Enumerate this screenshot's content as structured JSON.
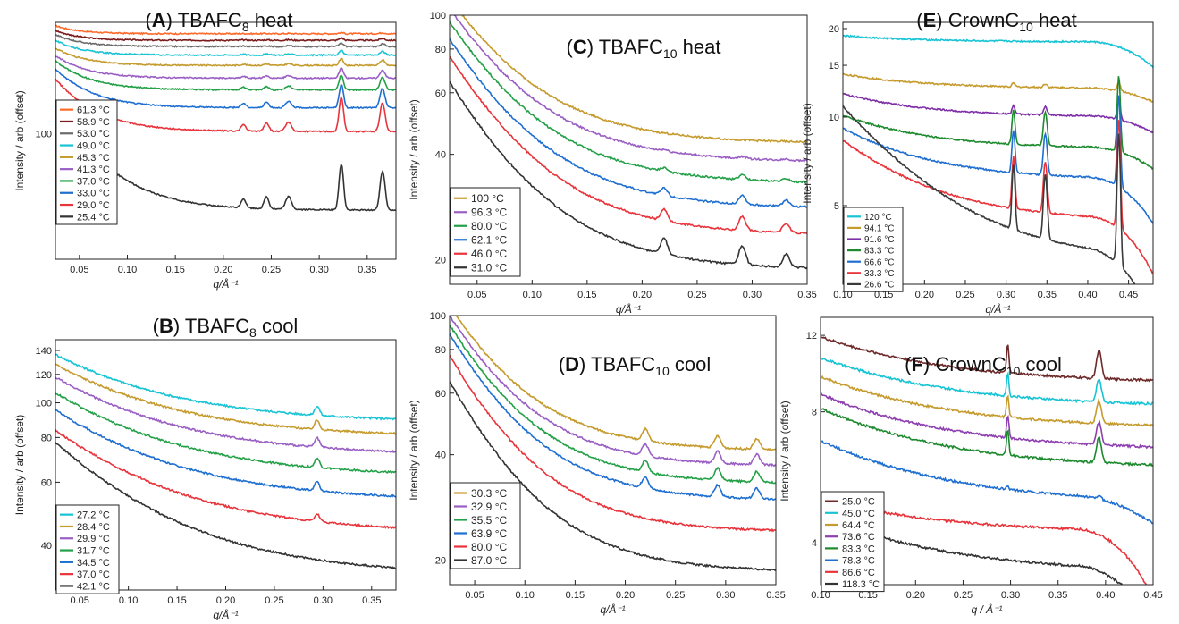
{
  "chart_data": [
    {
      "id": "A",
      "type": "line",
      "title": {
        "letter": "A",
        "base": "TBAFC",
        "sub": "8",
        "tail": "heat"
      },
      "xlabel": "q/Å⁻¹",
      "ylabel": "Intensity / arb (offset)",
      "xlim": [
        0.025,
        0.38
      ],
      "ylim": [
        30,
        290
      ],
      "yscale": "log",
      "xticks": [
        0.05,
        0.1,
        0.15,
        0.2,
        0.25,
        0.3,
        0.35
      ],
      "xtick_labels": [
        "0.05",
        "0.10",
        "0.15",
        "0.20",
        "0.25",
        "0.30",
        "0.35"
      ],
      "yticks": [
        100
      ],
      "ytick_labels": [
        "100"
      ],
      "peaks": [
        {
          "x": 0.221,
          "w": 0.0025,
          "h": 0.09
        },
        {
          "x": 0.245,
          "w": 0.0025,
          "h": 0.12
        },
        {
          "x": 0.268,
          "w": 0.003,
          "h": 0.13
        },
        {
          "x": 0.323,
          "w": 0.0022,
          "h": 0.55
        },
        {
          "x": 0.366,
          "w": 0.0025,
          "h": 0.45
        }
      ],
      "series": [
        {
          "name": "61.3 °C",
          "color": "#ff6a2b",
          "base": 260,
          "amp": 0.08,
          "k": 40,
          "peak_scale": 0.02
        },
        {
          "name": "58.9 °C",
          "color": "#7b1c1c",
          "base": 244,
          "amp": 0.1,
          "k": 40,
          "peak_scale": 0.04
        },
        {
          "name": "53.0 °C",
          "color": "#6b6b6b",
          "base": 230,
          "amp": 0.12,
          "k": 38,
          "peak_scale": 0.06
        },
        {
          "name": "49.0 °C",
          "color": "#18c4d4",
          "base": 212,
          "amp": 0.15,
          "k": 36,
          "peak_scale": 0.08
        },
        {
          "name": "45.3 °C",
          "color": "#c69b2e",
          "base": 192,
          "amp": 0.18,
          "k": 34,
          "peak_scale": 0.12
        },
        {
          "name": "41.3 °C",
          "color": "#9a5fc4",
          "base": 170,
          "amp": 0.24,
          "k": 32,
          "peak_scale": 0.18
        },
        {
          "name": "37.0 °C",
          "color": "#24a148",
          "base": 152,
          "amp": 0.32,
          "k": 30,
          "peak_scale": 0.28
        },
        {
          "name": "33.0 °C",
          "color": "#1f6fd1",
          "base": 128,
          "amp": 0.45,
          "k": 28,
          "peak_scale": 0.45
        },
        {
          "name": "29.0 °C",
          "color": "#e8343b",
          "base": 102,
          "amp": 0.65,
          "k": 26,
          "peak_scale": 0.7
        },
        {
          "name": "25.4 °C",
          "color": "#333333",
          "base": 48,
          "amp": 1.7,
          "k": 22,
          "peak_scale": 1.0
        }
      ],
      "legend": "bottom-left"
    },
    {
      "id": "B",
      "type": "line",
      "title": {
        "letter": "B",
        "base": "TBAFC",
        "sub": "8",
        "tail": "cool"
      },
      "xlabel": "q/Å⁻¹",
      "ylabel": "Intensity / arb (offset)",
      "xlim": [
        0.025,
        0.375
      ],
      "ylim": [
        30,
        150
      ],
      "yscale": "log",
      "xticks": [
        0.05,
        0.1,
        0.15,
        0.2,
        0.25,
        0.3,
        0.35
      ],
      "xtick_labels": [
        "0.05",
        "0.10",
        "0.15",
        "0.20",
        "0.25",
        "0.30",
        "0.35"
      ],
      "yticks": [
        40,
        60,
        80,
        100,
        120,
        140
      ],
      "ytick_labels": [
        "40",
        "60",
        "80",
        "100",
        "120",
        "140"
      ],
      "peaks": [
        {
          "x": 0.294,
          "w": 0.0025,
          "h": 0.06
        }
      ],
      "series": [
        {
          "name": "27.2 °C",
          "color": "#18c4d4",
          "base": 88,
          "amp": 0.55,
          "k": 9,
          "peak_scale": 1.0
        },
        {
          "name": "28.4 °C",
          "color": "#c69b2e",
          "base": 80,
          "amp": 0.6,
          "k": 9,
          "peak_scale": 1.0
        },
        {
          "name": "29.9 °C",
          "color": "#9a5fc4",
          "base": 71,
          "amp": 0.66,
          "k": 9,
          "peak_scale": 1.0
        },
        {
          "name": "31.7 °C",
          "color": "#24a148",
          "base": 62,
          "amp": 0.72,
          "k": 9,
          "peak_scale": 1.0
        },
        {
          "name": "34.5 °C",
          "color": "#1f6fd1",
          "base": 53,
          "amp": 0.8,
          "k": 9,
          "peak_scale": 1.0
        },
        {
          "name": "37.0 °C",
          "color": "#e8343b",
          "base": 43,
          "amp": 0.95,
          "k": 9,
          "peak_scale": 0.8
        },
        {
          "name": "42.1 °C",
          "color": "#333333",
          "base": 33,
          "amp": 1.35,
          "k": 9.5,
          "peak_scale": 0.0
        }
      ],
      "legend": "bottom-left"
    },
    {
      "id": "C",
      "type": "line",
      "title": {
        "letter": "C",
        "base": "TBAFC",
        "sub": "10",
        "tail": "heat"
      },
      "xlabel": "q/Å⁻¹",
      "ylabel": "Intensity / arb (offset)",
      "xlim": [
        0.025,
        0.35
      ],
      "ylim": [
        17,
        100
      ],
      "yscale": "log",
      "xticks": [
        0.05,
        0.1,
        0.15,
        0.2,
        0.25,
        0.3,
        0.35
      ],
      "xtick_labels": [
        "0.05",
        "0.10",
        "0.15",
        "0.20",
        "0.25",
        "0.30",
        "0.35"
      ],
      "yticks": [
        20,
        40,
        60,
        80,
        100
      ],
      "ytick_labels": [
        "20",
        "40",
        "60",
        "80",
        "100"
      ],
      "peaks": [
        {
          "x": 0.22,
          "w": 0.003,
          "h": 0.1
        },
        {
          "x": 0.291,
          "w": 0.003,
          "h": 0.12
        },
        {
          "x": 0.331,
          "w": 0.003,
          "h": 0.08
        }
      ],
      "series": [
        {
          "name": "100 °C",
          "color": "#c69b2e",
          "base": 43,
          "amp": 1.6,
          "k": 16,
          "peak_scale": 0.0
        },
        {
          "name": "96.3 °C",
          "color": "#9a5fc4",
          "base": 38,
          "amp": 1.75,
          "k": 16,
          "peak_scale": 0.1
        },
        {
          "name": "80.0 °C",
          "color": "#24a148",
          "base": 33,
          "amp": 1.9,
          "k": 16,
          "peak_scale": 0.25
        },
        {
          "name": "62.1 °C",
          "color": "#1f6fd1",
          "base": 28,
          "amp": 2.05,
          "k": 16,
          "peak_scale": 0.5
        },
        {
          "name": "46.0 °C",
          "color": "#e8343b",
          "base": 23.5,
          "amp": 2.25,
          "k": 16,
          "peak_scale": 0.8
        },
        {
          "name": "31.0 °C",
          "color": "#333333",
          "base": 18.7,
          "amp": 2.45,
          "k": 16,
          "peak_scale": 1.1
        }
      ],
      "legend": "bottom-left"
    },
    {
      "id": "D",
      "type": "line",
      "title": {
        "letter": "D",
        "base": "TBAFC",
        "sub": "10",
        "tail": "cool"
      },
      "xlabel": "q/Å⁻¹",
      "ylabel": "Intensity / arb (offset)",
      "xlim": [
        0.025,
        0.35
      ],
      "ylim": [
        17,
        100
      ],
      "yscale": "log",
      "xticks": [
        0.05,
        0.1,
        0.15,
        0.2,
        0.25,
        0.3,
        0.35
      ],
      "xtick_labels": [
        "0.05",
        "0.10",
        "0.15",
        "0.20",
        "0.25",
        "0.30",
        "0.35"
      ],
      "yticks": [
        20,
        40,
        60,
        80,
        100
      ],
      "ytick_labels": [
        "20",
        "40",
        "60",
        "80",
        "100"
      ],
      "peaks": [
        {
          "x": 0.22,
          "w": 0.003,
          "h": 0.08
        },
        {
          "x": 0.292,
          "w": 0.003,
          "h": 0.08
        },
        {
          "x": 0.331,
          "w": 0.003,
          "h": 0.07
        }
      ],
      "series": [
        {
          "name": "30.3 °C",
          "color": "#c69b2e",
          "base": 41,
          "amp": 1.6,
          "k": 16,
          "peak_scale": 1.0
        },
        {
          "name": "32.9 °C",
          "color": "#9a5fc4",
          "base": 37,
          "amp": 1.7,
          "k": 16,
          "peak_scale": 1.0
        },
        {
          "name": "35.5 °C",
          "color": "#24a148",
          "base": 33,
          "amp": 1.85,
          "k": 16,
          "peak_scale": 1.0
        },
        {
          "name": "63.9 °C",
          "color": "#1f6fd1",
          "base": 29.5,
          "amp": 2.0,
          "k": 16,
          "peak_scale": 1.0
        },
        {
          "name": "80.0 °C",
          "color": "#e8343b",
          "base": 24,
          "amp": 2.2,
          "k": 16,
          "peak_scale": 0.0
        },
        {
          "name": "87.0 °C",
          "color": "#333333",
          "base": 18.5,
          "amp": 2.5,
          "k": 16,
          "peak_scale": 0.0
        }
      ],
      "legend": "bottom-left"
    },
    {
      "id": "E",
      "type": "line",
      "title": {
        "letter": "E",
        "base": "CrownC",
        "sub": "10",
        "tail": "heat"
      },
      "xlabel": "q/Å⁻¹",
      "ylabel": "Intensity / arb (offset)",
      "xlim": [
        0.1,
        0.48
      ],
      "ylim": [
        2.7,
        21
      ],
      "yscale": "log",
      "xticks": [
        0.1,
        0.15,
        0.2,
        0.25,
        0.3,
        0.35,
        0.4,
        0.45
      ],
      "xtick_labels": [
        "0.10",
        "0.15",
        "0.20",
        "0.25",
        "0.30",
        "0.35",
        "0.40",
        "0.45"
      ],
      "yticks": [
        5,
        10,
        15,
        20
      ],
      "ytick_labels": [
        "5",
        "10",
        "15",
        "20"
      ],
      "peaks": [
        {
          "x": 0.309,
          "w": 0.0018,
          "h": 0.55
        },
        {
          "x": 0.348,
          "w": 0.0022,
          "h": 0.55
        },
        {
          "x": 0.438,
          "w": 0.0018,
          "h": 1.5
        }
      ],
      "series": [
        {
          "name": "120 °C",
          "color": "#18c4d4",
          "base": 18,
          "amp": 0.05,
          "k": 10,
          "peak_scale": 0.0,
          "tail": 0.18
        },
        {
          "name": "94.1 °C",
          "color": "#c69b2e",
          "base": 12.5,
          "amp": 0.12,
          "k": 10,
          "peak_scale": 0.05,
          "tail": 0.1
        },
        {
          "name": "91.6 °C",
          "color": "#7e2fa8",
          "base": 10,
          "amp": 0.2,
          "k": 10,
          "peak_scale": 0.12,
          "tail": 0.12
        },
        {
          "name": "83.3 °C",
          "color": "#1d8a2e",
          "base": 7.8,
          "amp": 0.3,
          "k": 10,
          "peak_scale": 0.55,
          "tail": 0.15
        },
        {
          "name": "66.6 °C",
          "color": "#1f6fd1",
          "base": 6.1,
          "amp": 0.5,
          "k": 10,
          "peak_scale": 0.7,
          "tail": 0.3
        },
        {
          "name": "33.3 °C",
          "color": "#e8343b",
          "base": 4.4,
          "amp": 0.9,
          "k": 10,
          "peak_scale": 0.9,
          "tail": 0.35
        },
        {
          "name": "26.6 °C",
          "color": "#3a3a3a",
          "base": 3.2,
          "amp": 2.4,
          "k": 10,
          "peak_scale": 1.2,
          "tail": 0.4
        }
      ],
      "legend": "bottom-left"
    },
    {
      "id": "F",
      "type": "line",
      "title": {
        "letter": "F",
        "base": "CrownC",
        "sub": "10",
        "tail": "cool"
      },
      "xlabel": "q / Å⁻¹",
      "ylabel": "Intensity / arb (offset)",
      "xlim": [
        0.1,
        0.45
      ],
      "ylim": [
        3.2,
        13.2
      ],
      "yscale": "log",
      "xticks": [
        0.1,
        0.15,
        0.2,
        0.25,
        0.3,
        0.35,
        0.4,
        0.45
      ],
      "xtick_labels": [
        "0.10",
        "0.15",
        "0.20",
        "0.25",
        "0.30",
        "0.35",
        "0.40",
        "0.45"
      ],
      "yticks": [
        4,
        8,
        12
      ],
      "ytick_labels": [
        "4",
        "8",
        "12"
      ],
      "peaks": [
        {
          "x": 0.297,
          "w": 0.0012,
          "h": 0.16
        },
        {
          "x": 0.393,
          "w": 0.0025,
          "h": 0.16
        }
      ],
      "series": [
        {
          "name": "25.0 °C",
          "color": "#6e2a2a",
          "base": 9.3,
          "amp": 0.28,
          "k": 8,
          "peak_scale": 1.0,
          "tail": 0.0
        },
        {
          "name": "45.0 °C",
          "color": "#18c4d4",
          "base": 8.2,
          "amp": 0.3,
          "k": 8,
          "peak_scale": 0.8,
          "tail": 0.0
        },
        {
          "name": "64.4 °C",
          "color": "#c69b2e",
          "base": 7.3,
          "amp": 0.32,
          "k": 8,
          "peak_scale": 0.8,
          "tail": 0.0
        },
        {
          "name": "73.6 °C",
          "color": "#8e3fb0",
          "base": 6.5,
          "amp": 0.35,
          "k": 8,
          "peak_scale": 0.8,
          "tail": 0.0
        },
        {
          "name": "83.3 °C",
          "color": "#1d8a2e",
          "base": 5.9,
          "amp": 0.38,
          "k": 8,
          "peak_scale": 0.9,
          "tail": 0.0
        },
        {
          "name": "78.3 °C",
          "color": "#1f6fd1",
          "base": 4.9,
          "amp": 0.4,
          "k": 8,
          "peak_scale": 0.1,
          "tail": 0.12
        },
        {
          "name": "86.6 °C",
          "color": "#e8343b",
          "base": 4.2,
          "amp": 0.2,
          "k": 8,
          "peak_scale": 0.0,
          "tail": 0.3
        },
        {
          "name": "118.3 °C",
          "color": "#333333",
          "base": 3.4,
          "amp": 0.35,
          "k": 8,
          "peak_scale": 0.0,
          "tail": 0.25
        }
      ],
      "legend": "bottom-left"
    }
  ]
}
